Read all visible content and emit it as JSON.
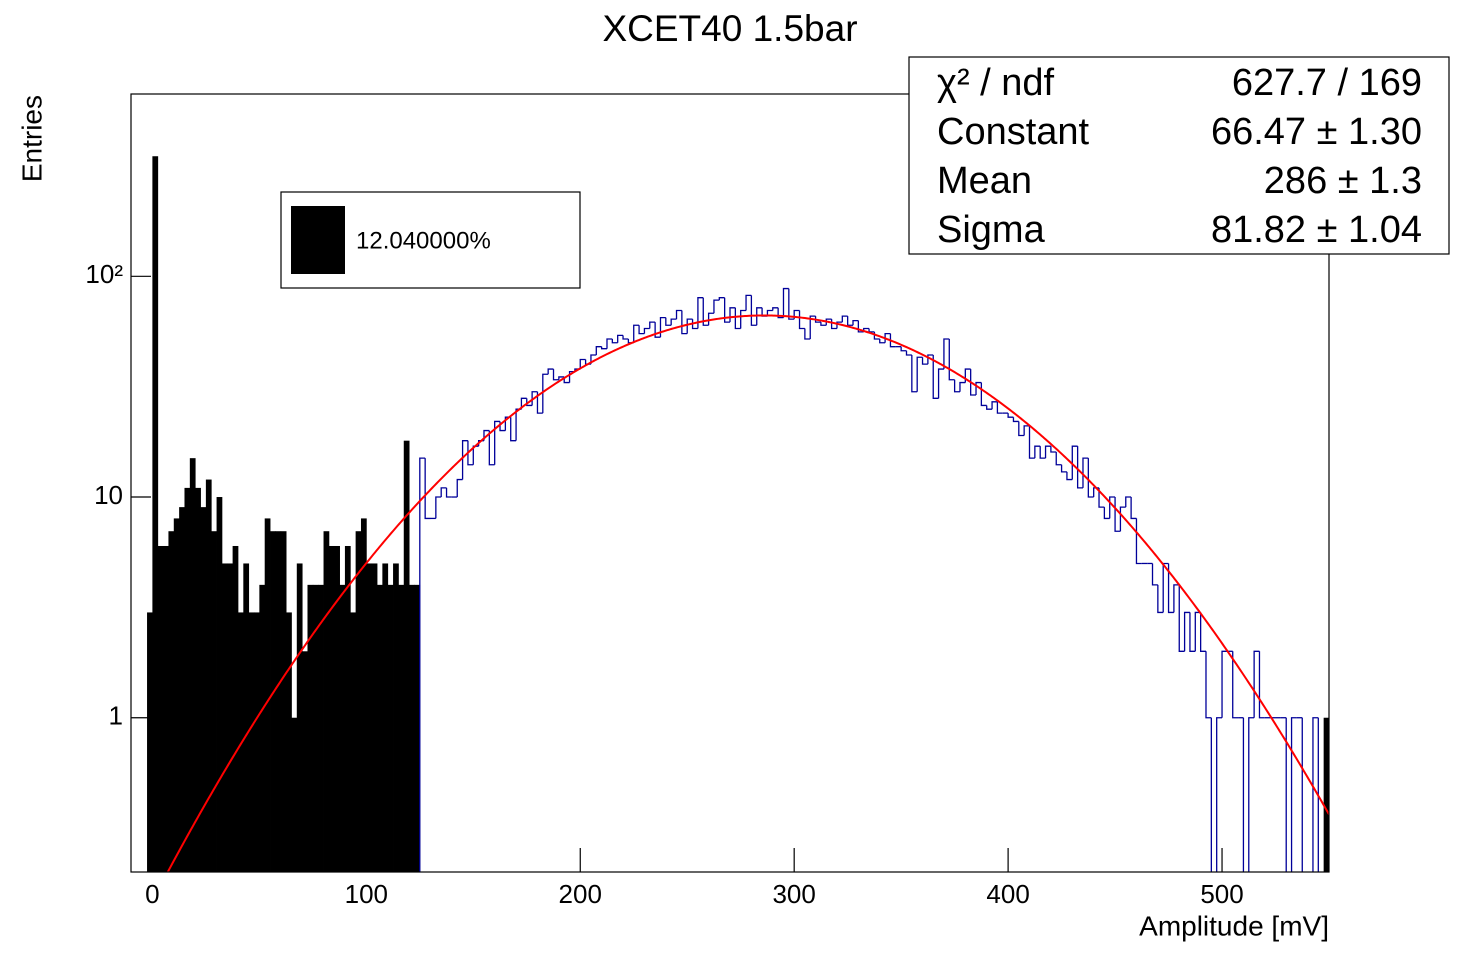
{
  "chart_data": {
    "type": "histogram",
    "title": "XCET40 1.5bar",
    "xlabel": "Amplitude [mV]",
    "ylabel": "Entries",
    "xlim": [
      -10,
      550
    ],
    "ylim": [
      0.2,
      670
    ],
    "log_y": true,
    "xticks": [
      0,
      100,
      200,
      300,
      400,
      500
    ],
    "yticks": [
      1,
      10,
      {
        "value": 100,
        "label": "10²"
      }
    ],
    "legend": "upper left",
    "series": [
      {
        "name": "12.040000%",
        "color": "#000000",
        "fill": true,
        "bins": [
          -2.5,
          0,
          2.5,
          5,
          7.5,
          10,
          12.5,
          15,
          17.5,
          20,
          22.5,
          25,
          27.5,
          30,
          32.5,
          35,
          37.5,
          40,
          42.5,
          45,
          47.5,
          50,
          52.5,
          55,
          57.5,
          60,
          62.5,
          65,
          67.5,
          70,
          72.5,
          75,
          77.5,
          80,
          82.5,
          85,
          87.5,
          90,
          92.5,
          95,
          97.5,
          100,
          102.5,
          105,
          107.5,
          110,
          112.5,
          115,
          117.5,
          120,
          122.5,
          125
        ],
        "values": [
          3,
          350,
          6,
          6,
          7,
          8,
          9,
          11,
          15,
          11,
          9,
          12,
          7,
          10,
          5,
          5,
          6,
          3,
          5,
          3,
          3,
          4,
          8,
          7,
          7,
          7,
          3,
          1,
          5,
          2,
          4,
          4,
          4,
          7,
          6,
          6,
          4,
          6,
          3,
          7,
          8,
          5,
          5,
          4,
          5,
          4,
          5,
          4,
          18,
          4,
          4
        ]
      },
      {
        "color": "#000099",
        "fill": false,
        "bins": [
          125,
          127.5,
          130,
          132.5,
          135,
          137.5,
          140,
          142.5,
          145,
          147.5,
          150,
          152.5,
          155,
          157.5,
          160,
          162.5,
          165,
          167.5,
          170,
          172.5,
          175,
          177.5,
          180,
          182.5,
          185,
          187.5,
          190,
          192.5,
          195,
          197.5,
          200,
          202.5,
          205,
          207.5,
          210,
          212.5,
          215,
          217.5,
          220,
          222.5,
          225,
          227.5,
          230,
          232.5,
          235,
          237.5,
          240,
          242.5,
          245,
          247.5,
          250,
          252.5,
          255,
          257.5,
          260,
          262.5,
          265,
          267.5,
          270,
          272.5,
          275,
          277.5,
          280,
          282.5,
          285,
          287.5,
          290,
          292.5,
          295,
          297.5,
          300,
          302.5,
          305,
          307.5,
          310,
          312.5,
          315,
          317.5,
          320,
          322.5,
          325,
          327.5,
          330,
          332.5,
          335,
          337.5,
          340,
          342.5,
          345,
          347.5,
          350,
          352.5,
          355,
          357.5,
          360,
          362.5,
          365,
          367.5,
          370,
          372.5,
          375,
          377.5,
          380,
          382.5,
          385,
          387.5,
          390,
          392.5,
          395,
          397.5,
          400,
          402.5,
          405,
          407.5,
          410,
          412.5,
          415,
          417.5,
          420,
          422.5,
          425,
          427.5,
          430,
          432.5,
          435,
          437.5,
          440,
          442.5,
          445,
          447.5,
          450,
          452.5,
          455,
          457.5,
          460,
          462.5,
          465,
          467.5,
          470,
          472.5,
          475,
          477.5,
          480,
          482.5,
          485,
          487.5,
          490,
          492.5,
          495,
          497.5,
          500,
          502.5,
          505,
          507.5,
          510,
          512.5,
          515,
          517.5,
          520,
          522.5,
          525,
          527.5,
          530,
          532.5,
          535,
          537.5,
          540,
          542.5,
          545,
          547.5
        ],
        "values": [
          15,
          8,
          8,
          10,
          11,
          10,
          10,
          12,
          18,
          14,
          17,
          18,
          20,
          14,
          22,
          20,
          23,
          18,
          25,
          28,
          26,
          30,
          24,
          36,
          38,
          34,
          35,
          33,
          37,
          38,
          42,
          40,
          44,
          48,
          47,
          52,
          50,
          54,
          52,
          50,
          60,
          55,
          58,
          62,
          53,
          65,
          60,
          64,
          70,
          55,
          64,
          58,
          80,
          60,
          68,
          78,
          80,
          62,
          72,
          58,
          70,
          82,
          60,
          72,
          66,
          70,
          72,
          65,
          88,
          64,
          70,
          58,
          52,
          66,
          62,
          60,
          64,
          58,
          62,
          66,
          60,
          63,
          56,
          58,
          56,
          52,
          50,
          55,
          48,
          48,
          46,
          44,
          30,
          43,
          40,
          44,
          28,
          38,
          52,
          34,
          30,
          33,
          38,
          29,
          33,
          26,
          25,
          27,
          24,
          24,
          23,
          22,
          19,
          21,
          15,
          17,
          15,
          17,
          16,
          14,
          13,
          12,
          17,
          11,
          15,
          10,
          11,
          9,
          8,
          10,
          7,
          9,
          10,
          8,
          5,
          5,
          5,
          4,
          3,
          5,
          3,
          4,
          2,
          3,
          2,
          3,
          2,
          1,
          0,
          1,
          2,
          2,
          1,
          1,
          0,
          1,
          2,
          1,
          1,
          1,
          1,
          1,
          0,
          1,
          1,
          0,
          0,
          1,
          0
        ]
      },
      {
        "color": "#000000",
        "fill": true,
        "bins": [
          547.5,
          550
        ],
        "values": [
          1
        ]
      }
    ],
    "fit": {
      "function": "gaus",
      "constant": 66.47,
      "mean": 286,
      "sigma": 81.82,
      "color": "#ff0000"
    },
    "stats": [
      {
        "name": "χ² / ndf",
        "value": "627.7 / 169"
      },
      {
        "name": "Constant",
        "value": "66.47 ± 1.30"
      },
      {
        "name": "Mean",
        "value": "286 ± 1.3"
      },
      {
        "name": "Sigma",
        "value": "81.82 ± 1.04"
      }
    ]
  }
}
